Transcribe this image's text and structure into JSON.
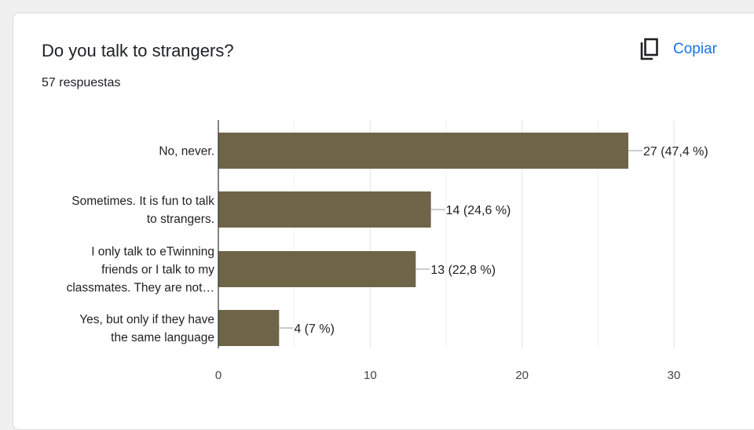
{
  "card": {
    "title": "Do you talk to strangers?",
    "response_count": "57 respuestas",
    "copy_label": "Copiar",
    "copy_icon": "copy-icon",
    "accent_color": "#1a73e8"
  },
  "chart_data": {
    "type": "bar",
    "orientation": "horizontal",
    "bar_color": "#6e6448",
    "categories": [
      [
        "No, never."
      ],
      [
        "Sometimes. It is fun to talk",
        "to strangers."
      ],
      [
        "I only talk to eTwinning",
        "friends or I talk to my",
        "classmates. They are not…"
      ],
      [
        "Yes, but only if they have",
        "the same language"
      ]
    ],
    "values": [
      27,
      14,
      13,
      4
    ],
    "data_labels": [
      "27 (47,4 %)",
      "14 (24,6 %)",
      "13 (22,8 %)",
      "4 (7 %)"
    ],
    "xlim": [
      0,
      30
    ],
    "xticks": [
      0,
      10,
      20,
      30
    ],
    "xtick_labels": [
      "0",
      "10",
      "20",
      "30"
    ],
    "grid": true
  }
}
